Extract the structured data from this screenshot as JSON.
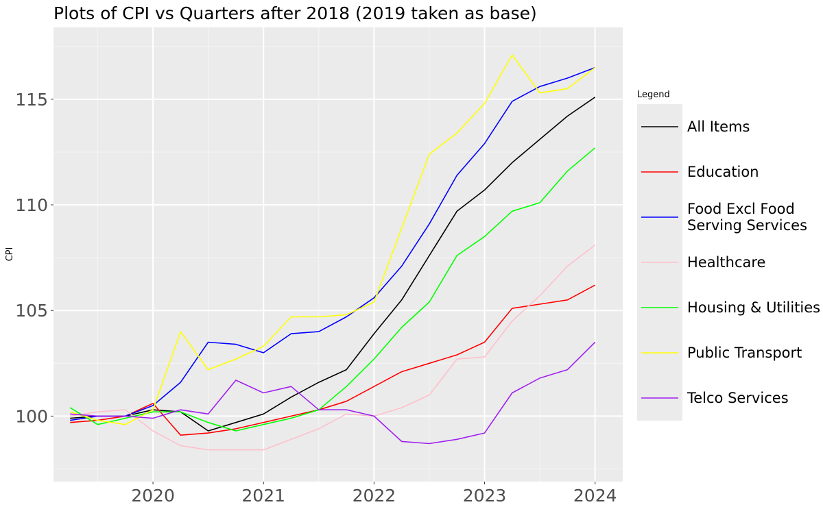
{
  "chart_data": {
    "type": "line",
    "title": "Plots of CPI vs Quarters after 2018 (2019 taken as base)",
    "xlabel": "",
    "ylabel": "CPI",
    "legend_title": "Legend",
    "legend_position": "right",
    "grid": true,
    "xlim": [
      2019.1,
      2024.25
    ],
    "ylim": [
      96.9,
      118.4
    ],
    "x_ticks": [
      2020,
      2021,
      2022,
      2023,
      2024
    ],
    "x_tick_labels": [
      "2020",
      "2021",
      "2022",
      "2023",
      "2024"
    ],
    "y_ticks": [
      100,
      105,
      110,
      115
    ],
    "y_tick_labels": [
      "100",
      "105",
      "110",
      "115"
    ],
    "x": [
      2019.25,
      2019.5,
      2019.75,
      2020.0,
      2020.25,
      2020.5,
      2020.75,
      2021.0,
      2021.25,
      2021.5,
      2021.75,
      2022.0,
      2022.25,
      2022.5,
      2022.75,
      2023.0,
      2023.25,
      2023.5,
      2023.75,
      2024.0
    ],
    "series": [
      {
        "name": "All Items",
        "color": "#000000",
        "values": [
          99.9,
          100.0,
          100.0,
          100.3,
          100.2,
          99.3,
          99.7,
          100.1,
          100.9,
          101.6,
          102.2,
          103.9,
          105.5,
          107.6,
          109.7,
          110.7,
          112.0,
          113.1,
          114.2,
          115.1
        ]
      },
      {
        "name": "Education",
        "color": "#ff0000",
        "values": [
          99.7,
          99.8,
          100.0,
          100.6,
          99.1,
          99.2,
          99.4,
          99.7,
          100.0,
          100.3,
          100.7,
          101.4,
          102.1,
          102.5,
          102.9,
          103.5,
          105.1,
          105.3,
          105.5,
          106.2
        ]
      },
      {
        "name": "Food Excl Food Serving Services",
        "color": "#0000ff",
        "values": [
          99.8,
          100.0,
          100.0,
          100.5,
          101.6,
          103.5,
          103.4,
          103.0,
          103.9,
          104.0,
          104.7,
          105.6,
          107.1,
          109.1,
          111.4,
          112.9,
          114.9,
          115.6,
          116.0,
          116.5
        ]
      },
      {
        "name": "Healthcare",
        "color": "#ffc0cb",
        "values": [
          100.0,
          100.2,
          100.3,
          99.3,
          98.6,
          98.4,
          98.4,
          98.4,
          98.9,
          99.4,
          100.1,
          100.0,
          100.4,
          101.0,
          102.7,
          102.8,
          104.5,
          105.7,
          107.1,
          108.1
        ]
      },
      {
        "name": "Housing & Utilities",
        "color": "#00ff00",
        "values": [
          100.4,
          99.6,
          99.9,
          100.2,
          100.2,
          99.7,
          99.3,
          99.6,
          99.9,
          100.3,
          101.4,
          102.7,
          104.2,
          105.4,
          107.6,
          108.5,
          109.7,
          110.1,
          111.6,
          112.7
        ]
      },
      {
        "name": "Public Transport",
        "color": "#ffff00",
        "values": [
          100.2,
          99.8,
          99.6,
          100.3,
          104.0,
          102.2,
          102.7,
          103.3,
          104.7,
          104.7,
          104.8,
          105.4,
          108.9,
          112.4,
          113.4,
          114.8,
          117.1,
          115.3,
          115.5,
          116.5
        ]
      },
      {
        "name": "Telco Services",
        "color": "#a020f0",
        "values": [
          100.1,
          100.0,
          100.0,
          99.9,
          100.3,
          100.1,
          101.7,
          101.1,
          101.4,
          100.3,
          100.3,
          100.0,
          98.8,
          98.7,
          98.9,
          99.2,
          101.1,
          101.8,
          102.2,
          103.5
        ]
      }
    ]
  },
  "colors": {
    "panel_background": "#ebebeb",
    "grid_major": "#ffffff",
    "grid_minor": "#f5f5f5",
    "tick_text": "#4d4d4d"
  }
}
